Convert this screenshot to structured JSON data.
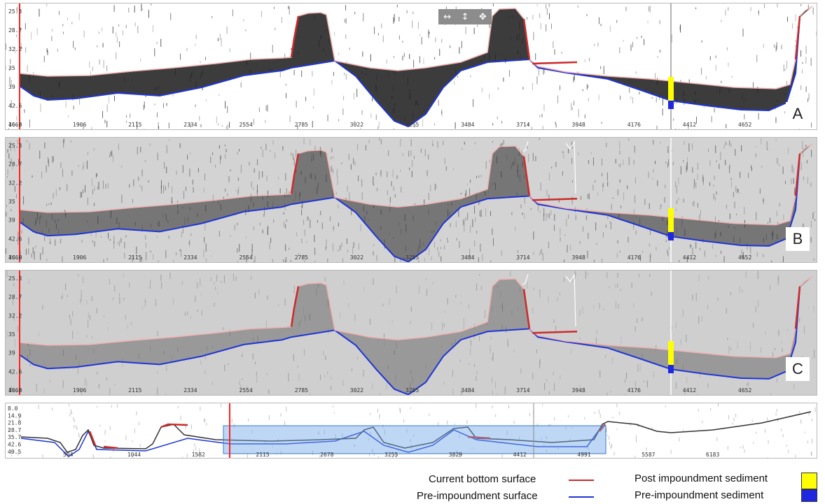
{
  "colors": {
    "current_bottom": "#cc2b2b",
    "pre_impoundment": "#1f35d6",
    "post_sediment": "#ffff00",
    "pre_sediment": "#1f28e0",
    "cursor_line": "#ff2020",
    "toolbar_bg": "#8c8c8c",
    "overview_box": "#6fa6e8"
  },
  "toolbar": {
    "pan_horizontal_icon": "↔",
    "pan_vertical_icon": "↕",
    "pan_all_icon": "✥"
  },
  "panels": [
    {
      "letter": "A",
      "y_ticks": [
        "25.3",
        "28.7",
        "32.2",
        "35",
        "39",
        "42.6",
        "46.0"
      ],
      "x_ticks": [
        "1666",
        "1906",
        "2115",
        "2334",
        "2554",
        "2785",
        "3022",
        "3255",
        "3484",
        "3714",
        "3948",
        "4176",
        "4412",
        "4652"
      ]
    },
    {
      "letter": "B",
      "y_ticks": [
        "25.3",
        "28.7",
        "32.2",
        "35",
        "39",
        "42.6",
        "46.0"
      ],
      "x_ticks": [
        "1666",
        "1906",
        "2115",
        "2334",
        "2554",
        "2785",
        "3022",
        "3255",
        "3484",
        "3714",
        "3948",
        "4176",
        "4412",
        "4652"
      ]
    },
    {
      "letter": "C",
      "y_ticks": [
        "25.3",
        "28.7",
        "32.2",
        "35",
        "39",
        "42.6",
        "46.0"
      ],
      "x_ticks": [
        "1666",
        "1906",
        "2115",
        "2334",
        "2554",
        "2785",
        "3022",
        "3255",
        "3484",
        "3714",
        "3948",
        "4176",
        "4412",
        "4652"
      ]
    }
  ],
  "overview": {
    "y_ticks": [
      "8.0",
      "14.9",
      "21.8",
      "28.7",
      "35.7",
      "42.6",
      "49.5"
    ],
    "x_ticks": [
      "504",
      "1044",
      "1582",
      "2115",
      "2678",
      "3255",
      "3829",
      "4412",
      "4991",
      "5587",
      "6183"
    ]
  },
  "legend": {
    "current_bottom": "Current bottom surface",
    "pre_surface": "Pre-impoundment surface",
    "post_sediment": "Post impoundment sediment",
    "pre_sediment": "Pre-impoundment sediment"
  }
}
